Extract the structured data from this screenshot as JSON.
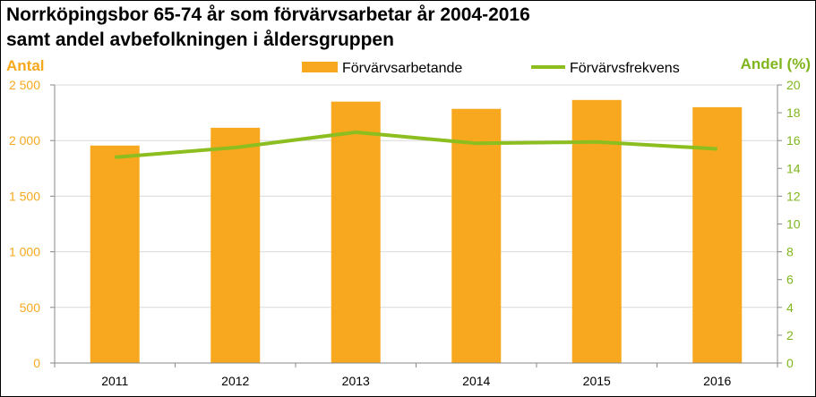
{
  "chart_data": {
    "type": "bar",
    "title": [
      "Norrköpingsbor 65-74 år som förvärvsarbetar år 2004-2016",
      "samt andel avbefolkningen i åldersgruppen"
    ],
    "categories": [
      "2011",
      "2012",
      "2013",
      "2014",
      "2015",
      "2016"
    ],
    "series": [
      {
        "name": "Förvärvsarbetande",
        "type": "bar",
        "axis": "left",
        "values": [
          1955,
          2115,
          2350,
          2285,
          2365,
          2300
        ]
      },
      {
        "name": "Förvärvsfrekvens",
        "type": "line",
        "axis": "right",
        "values": [
          14.8,
          15.5,
          16.6,
          15.8,
          15.9,
          15.4
        ]
      }
    ],
    "ylabel": "Antal",
    "ylabel_right": "Andel (%)",
    "ylim": [
      0,
      2500
    ],
    "ylim_right": [
      0,
      20
    ],
    "yticks": [
      "0",
      "500",
      "1 000",
      "1 500",
      "2 000",
      "2 500"
    ],
    "yticks_right": [
      "0",
      "2",
      "4",
      "6",
      "8",
      "10",
      "12",
      "14",
      "16",
      "18",
      "20"
    ],
    "grid": true,
    "legend_position": "top-center",
    "colors": {
      "bar": "#F7A81E",
      "line": "#8DBE1F",
      "left_axis": "#F7A81E",
      "right_axis": "#7FB51D",
      "grid": "#D9D9D9"
    }
  }
}
